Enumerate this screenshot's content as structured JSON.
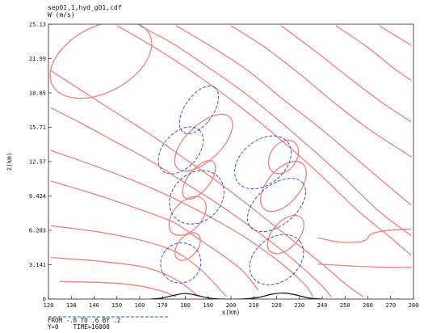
{
  "header": {
    "filename": "sep01,1,hyd_g01,cdf",
    "variable": "W (m/s)"
  },
  "footer": {
    "range_text": "FROM -.8 TO .6 BY .2",
    "time_text": "Y=0    TIME=16000",
    "dashed_color": "#3a55d6",
    "solid_color": "#f08080"
  },
  "chart_data": {
    "type": "contour",
    "xlabel": "x(km)",
    "ylabel": "z(km)",
    "xlim": [
      120,
      280
    ],
    "ylim": [
      0,
      25.13
    ],
    "x_ticks": [
      "120",
      "130",
      "140",
      "150",
      "160",
      "170",
      "180",
      "190",
      "200",
      "210",
      "220",
      "230",
      "240",
      "250",
      "260",
      "270",
      "280"
    ],
    "y_ticks": [
      {
        "value": 0,
        "label": "0"
      },
      {
        "value": 3.141,
        "label": "3.141"
      },
      {
        "value": 6.283,
        "label": "6.283"
      },
      {
        "value": 9.424,
        "label": "9.424"
      },
      {
        "value": 12.57,
        "label": "12.57"
      },
      {
        "value": 15.71,
        "label": "15.71"
      },
      {
        "value": 18.85,
        "label": "18.85"
      },
      {
        "value": 21.99,
        "label": "21.99"
      },
      {
        "value": 25.13,
        "label": "25.13"
      }
    ],
    "contour_min": -0.8,
    "contour_max": 0.6,
    "contour_interval": 0.2,
    "solid_lines": [
      [
        [
          121,
          20.9
        ],
        [
          135,
          19.0
        ],
        [
          150,
          17.0
        ],
        [
          165,
          15.0
        ],
        [
          180,
          12.8
        ],
        [
          195,
          10.6
        ],
        [
          210,
          8.2
        ],
        [
          225,
          5.7
        ],
        [
          240,
          3.2
        ],
        [
          250,
          1.4
        ],
        [
          258,
          0.2
        ]
      ],
      [
        [
          121,
          17.5
        ],
        [
          135,
          16.0
        ],
        [
          150,
          14.3
        ],
        [
          165,
          12.6
        ],
        [
          180,
          10.6
        ],
        [
          195,
          8.6
        ],
        [
          210,
          6.4
        ],
        [
          225,
          4.0
        ],
        [
          238,
          1.6
        ],
        [
          244,
          0.2
        ]
      ],
      [
        [
          121,
          13.6
        ],
        [
          140,
          12.2
        ],
        [
          160,
          10.6
        ],
        [
          175,
          9.2
        ],
        [
          190,
          7.6
        ],
        [
          205,
          5.8
        ],
        [
          220,
          3.6
        ],
        [
          232,
          1.4
        ],
        [
          236,
          0.2
        ]
      ],
      [
        [
          121,
          10.8
        ],
        [
          140,
          9.6
        ],
        [
          160,
          8.2
        ],
        [
          175,
          7.0
        ],
        [
          185,
          5.6
        ],
        [
          195,
          4.2
        ],
        [
          205,
          2.6
        ],
        [
          212,
          0.8
        ]
      ],
      [
        [
          121,
          6.7
        ],
        [
          140,
          6.2
        ],
        [
          160,
          5.4
        ],
        [
          175,
          4.4
        ],
        [
          185,
          3.0
        ],
        [
          192,
          1.6
        ],
        [
          198,
          0.2
        ]
      ],
      [
        [
          121,
          3.8
        ],
        [
          140,
          3.5
        ],
        [
          160,
          3.0
        ],
        [
          172,
          2.2
        ],
        [
          180,
          1.2
        ],
        [
          186,
          0.2
        ]
      ],
      [
        [
          125,
          1.6
        ],
        [
          145,
          1.5
        ],
        [
          160,
          1.2
        ],
        [
          170,
          0.7
        ],
        [
          176,
          0.2
        ]
      ],
      [
        [
          150,
          25.0
        ],
        [
          165,
          23.2
        ],
        [
          180,
          21.2
        ],
        [
          195,
          19.0
        ],
        [
          210,
          16.6
        ],
        [
          225,
          14.0
        ],
        [
          240,
          11.2
        ],
        [
          255,
          8.2
        ],
        [
          270,
          5.6
        ],
        [
          279,
          4.0
        ]
      ],
      [
        [
          160,
          25.0
        ],
        [
          175,
          23.3
        ],
        [
          190,
          21.2
        ],
        [
          205,
          19.0
        ],
        [
          220,
          16.5
        ],
        [
          235,
          13.8
        ],
        [
          250,
          11.0
        ],
        [
          265,
          8.0
        ],
        [
          279,
          5.8
        ]
      ],
      [
        [
          176,
          25.0
        ],
        [
          192,
          23.0
        ],
        [
          208,
          20.8
        ],
        [
          222,
          18.4
        ],
        [
          238,
          15.8
        ],
        [
          254,
          13.0
        ],
        [
          268,
          10.5
        ],
        [
          279,
          8.6
        ]
      ],
      [
        [
          200,
          25.0
        ],
        [
          215,
          23.0
        ],
        [
          230,
          20.6
        ],
        [
          245,
          18.0
        ],
        [
          260,
          15.6
        ],
        [
          279,
          13.0
        ]
      ],
      [
        [
          222,
          25.0
        ],
        [
          238,
          22.5
        ],
        [
          252,
          20.2
        ],
        [
          266,
          18.0
        ],
        [
          279,
          16.2
        ]
      ],
      [
        [
          246,
          25.0
        ],
        [
          260,
          23.0
        ],
        [
          272,
          21.0
        ],
        [
          279,
          20.0
        ]
      ],
      [
        [
          265,
          25.0
        ],
        [
          279,
          23.2
        ]
      ],
      [
        [
          238,
          5.6
        ],
        [
          248,
          5.2
        ],
        [
          258,
          5.3
        ],
        [
          262,
          6.0
        ],
        [
          270,
          6.3
        ],
        [
          279,
          6.4
        ]
      ],
      [
        [
          238,
          3.2
        ],
        [
          255,
          3.0
        ],
        [
          270,
          2.9
        ],
        [
          279,
          2.9
        ]
      ]
    ],
    "solid_loops": [
      {
        "cx": 143,
        "cy": 21.9,
        "rx": 24,
        "ry": 3.0,
        "rot": -28
      },
      {
        "cx": 188,
        "cy": 14.3,
        "rx": 16,
        "ry": 1.6,
        "rot": -44
      },
      {
        "cx": 186,
        "cy": 10.9,
        "rx": 10,
        "ry": 1.0,
        "rot": -52
      },
      {
        "cx": 181,
        "cy": 7.6,
        "rx": 10,
        "ry": 1.3,
        "rot": -48
      },
      {
        "cx": 181,
        "cy": 4.8,
        "rx": 7,
        "ry": 0.9,
        "rot": -50
      },
      {
        "cx": 223,
        "cy": 13.0,
        "rx": 8,
        "ry": 1.2,
        "rot": -55
      },
      {
        "cx": 223,
        "cy": 10.3,
        "rx": 13,
        "ry": 1.5,
        "rot": -50
      },
      {
        "cx": 224,
        "cy": 5.9,
        "rx": 10,
        "ry": 1.2,
        "rot": -48
      }
    ],
    "dashed_loops": [
      {
        "cx": 186,
        "cy": 17.3,
        "rx": 12,
        "ry": 1.3,
        "rot": -55
      },
      {
        "cx": 214,
        "cy": 12.5,
        "rx": 14,
        "ry": 2.0,
        "rot": -40
      },
      {
        "cx": 178,
        "cy": 13.6,
        "rx": 12,
        "ry": 1.6,
        "rot": -48
      },
      {
        "cx": 185,
        "cy": 9.3,
        "rx": 13,
        "ry": 2.2,
        "rot": -42
      },
      {
        "cx": 220,
        "cy": 8.6,
        "rx": 15,
        "ry": 1.8,
        "rot": -40
      },
      {
        "cx": 178,
        "cy": 3.3,
        "rx": 9,
        "ry": 1.8,
        "rot": -40
      },
      {
        "cx": 220,
        "cy": 3.6,
        "rx": 13,
        "ry": 2.0,
        "rot": -38
      }
    ],
    "terrain": [
      [
        165,
        0
      ],
      [
        170,
        0.1
      ],
      [
        175,
        0.35
      ],
      [
        180,
        0.5
      ],
      [
        185,
        0.35
      ],
      [
        190,
        0.1
      ],
      [
        195,
        0
      ],
      [
        205,
        0
      ],
      [
        212,
        0.15
      ],
      [
        218,
        0.45
      ],
      [
        223,
        0.55
      ],
      [
        228,
        0.4
      ],
      [
        234,
        0.1
      ],
      [
        240,
        0
      ]
    ]
  }
}
